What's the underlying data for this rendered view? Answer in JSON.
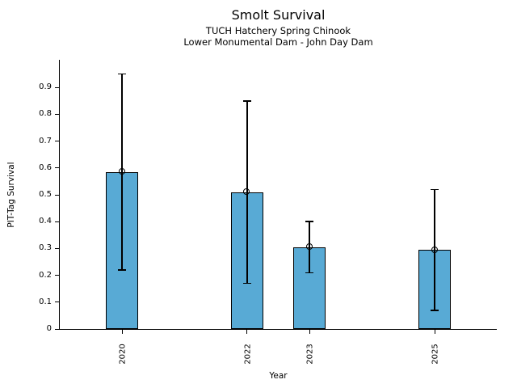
{
  "chart_data": {
    "type": "bar",
    "title": "Smolt Survival",
    "subtitle_line1": "TUCH Hatchery Spring Chinook",
    "subtitle_line2": "Lower Monumental Dam - John Day Dam",
    "xlabel": "Year",
    "ylabel": "PIT-Tag Survival",
    "categories": [
      "2020",
      "2022",
      "2023",
      "2025"
    ],
    "x": [
      2020,
      2022,
      2023,
      2025
    ],
    "values": [
      0.585,
      0.51,
      0.305,
      0.295
    ],
    "error_low": [
      0.22,
      0.17,
      0.21,
      0.07
    ],
    "error_high": [
      0.95,
      0.85,
      0.4,
      0.52
    ],
    "yticks": [
      0,
      0.1,
      0.2,
      0.3,
      0.4,
      0.5,
      0.6,
      0.7,
      0.8,
      0.9
    ],
    "ylim": [
      0,
      1.0
    ],
    "xaxis_numeric": true,
    "grid": false,
    "legend_position": "none",
    "marker": "open-circle",
    "bar_color": "#58AAD5",
    "bar_edge_color": "#000000",
    "error_color": "#000000",
    "text_color": "#000000"
  }
}
